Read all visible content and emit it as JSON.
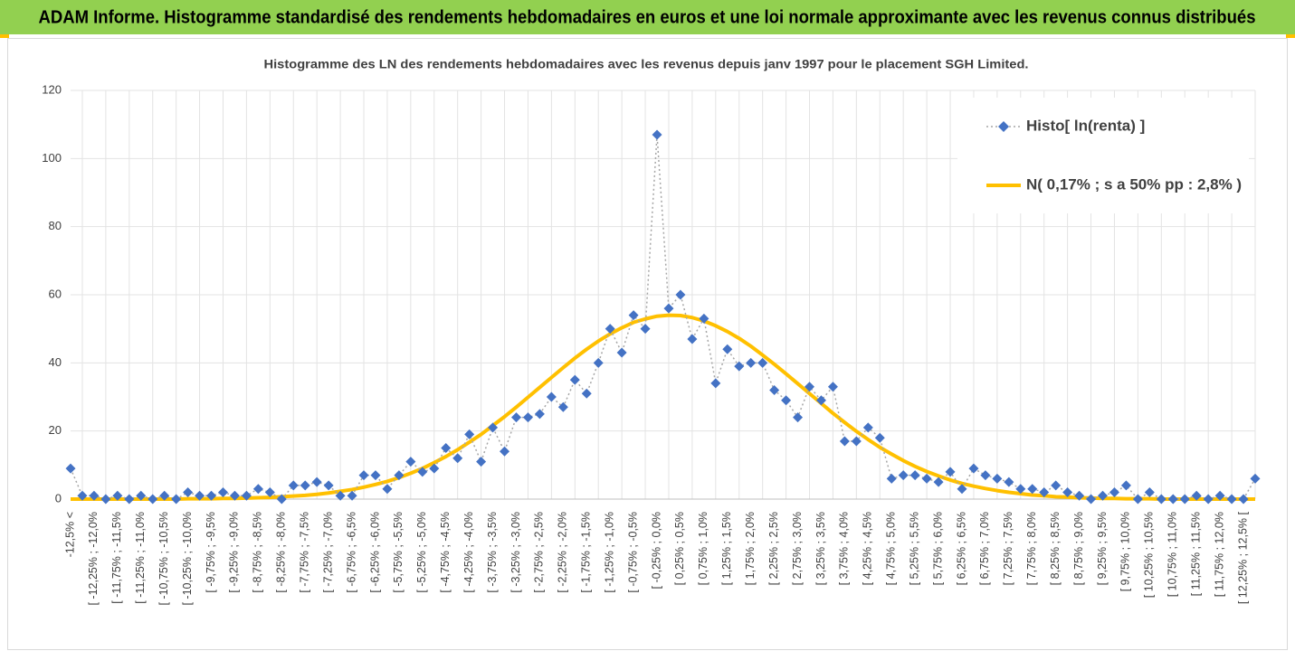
{
  "banner": "ADAM Informe. Histogramme standardisé des rendements hebdomadaires en euros et une loi normale approximante avec les revenus connus distribués",
  "chart_data": {
    "type": "line",
    "title": "Histogramme des LN des rendements hebdomadaires avec les revenus depuis janv 1997 pour le placement SGH Limited.",
    "categories": [
      "-12,5% <",
      null,
      "[ -12,25% ; -12,0%",
      null,
      "[ -11,75% ; -11,5%",
      null,
      "[ -11,25% ; -11,0%",
      null,
      "[ -10,75% ; -10,5%",
      null,
      "[ -10,25% ; -10,0%",
      null,
      "[ -9,75% ; -9,5%",
      null,
      "[ -9,25% ; -9,0%",
      null,
      "[ -8,75% ; -8,5%",
      null,
      "[ -8,25% ; -8,0%",
      null,
      "[ -7,75% ; -7,5%",
      null,
      "[ -7,25% ; -7,0%",
      null,
      "[ -6,75% ; -6,5%",
      null,
      "[ -6,25% ; -6,0%",
      null,
      "[ -5,75% ; -5,5%",
      null,
      "[ -5,25% ; -5,0%",
      null,
      "[ -4,75% ; -4,5%",
      null,
      "[ -4,25% ; -4,0%",
      null,
      "[ -3,75% ; -3,5%",
      null,
      "[ -3,25% ; -3,0%",
      null,
      "[ -2,75% ; -2,5%",
      null,
      "[ -2,25% ; -2,0%",
      null,
      "[ -1,75% ; -1,5%",
      null,
      "[ -1,25% ; -1,0%",
      null,
      "[ -0,75% ; -0,5%",
      null,
      "[ -0,25% ; 0,0%",
      null,
      "[ 0,25% ; 0,5%",
      null,
      "[ 0,75% ; 1,0%",
      null,
      "[ 1,25% ; 1,5%",
      null,
      "[ 1,75% ; 2,0%",
      null,
      "[ 2,25% ; 2,5%",
      null,
      "[ 2,75% ; 3,0%",
      null,
      "[ 3,25% ; 3,5%",
      null,
      "[ 3,75% ; 4,0%",
      null,
      "[ 4,25% ; 4,5%",
      null,
      "[ 4,75% ; 5,0%",
      null,
      "[ 5,25% ; 5,5%",
      null,
      "[ 5,75% ; 6,0%",
      null,
      "[ 6,25% ; 6,5%",
      null,
      "[ 6,75% ; 7,0%",
      null,
      "[ 7,25% ; 7,5%",
      null,
      "[ 7,75% ; 8,0%",
      null,
      "[ 8,25% ; 8,5%",
      null,
      "[ 8,75% ; 9,0%",
      null,
      "[ 9,25% ; 9,5%",
      null,
      "[ 9,75% ; 10,0%",
      null,
      "[ 10,25% ; 10,5%",
      null,
      "[ 10,75% ; 11,0%",
      null,
      "[ 11,25% ; 11,5%",
      null,
      "[ 11,75% ; 12,0%",
      null,
      "[ 12,25% ; 12,5% [",
      null
    ],
    "series": [
      {
        "name": "Histo[ ln(renta) ]",
        "color": "#4472c4",
        "line_color": "#a6a6a6",
        "line_style": "dotted",
        "marker": "diamond",
        "values": [
          9,
          1,
          1,
          0,
          1,
          0,
          1,
          0,
          1,
          0,
          2,
          1,
          1,
          2,
          1,
          1,
          3,
          2,
          0,
          4,
          4,
          5,
          4,
          1,
          1,
          7,
          7,
          3,
          7,
          11,
          8,
          9,
          15,
          12,
          19,
          11,
          21,
          14,
          24,
          24,
          25,
          30,
          27,
          35,
          31,
          40,
          50,
          43,
          54,
          50,
          107,
          56,
          60,
          47,
          53,
          34,
          44,
          39,
          40,
          40,
          32,
          29,
          24,
          33,
          29,
          33,
          17,
          17,
          21,
          18,
          6,
          7,
          7,
          6,
          5,
          8,
          3,
          9,
          7,
          6,
          5,
          3,
          3,
          2,
          4,
          2,
          1,
          0,
          1,
          2,
          4,
          0,
          2,
          0,
          0,
          0,
          1,
          0,
          1,
          0,
          0,
          6
        ]
      },
      {
        "name": "N( 0,17% ; s a 50% pp : 2,8% )",
        "color": "#ffc000",
        "line_color": "#ffc000",
        "line_style": "solid",
        "marker": "none",
        "values": [
          0,
          0,
          0,
          0,
          0,
          0,
          0,
          0,
          0,
          0,
          0.1,
          0.1,
          0.1,
          0.2,
          0.2,
          0.3,
          0.4,
          0.5,
          0.7,
          0.9,
          1.1,
          1.4,
          1.8,
          2.3,
          2.8,
          3.5,
          4.3,
          5.2,
          6.3,
          7.6,
          9.0,
          10.7,
          12.5,
          14.5,
          16.7,
          19.0,
          21.6,
          24.2,
          27.0,
          29.9,
          32.8,
          35.7,
          38.6,
          41.4,
          44.0,
          46.4,
          48.5,
          50.3,
          51.9,
          52.9,
          53.7,
          54.0,
          53.9,
          53.3,
          52.3,
          50.9,
          49.2,
          47.2,
          44.9,
          42.3,
          39.6,
          36.8,
          33.9,
          31.0,
          28.1,
          25.2,
          22.5,
          19.9,
          17.5,
          15.2,
          13.2,
          11.3,
          9.6,
          8.1,
          6.8,
          5.6,
          4.6,
          3.8,
          3.1,
          2.5,
          2.0,
          1.6,
          1.2,
          1.0,
          0.7,
          0.6,
          0.4,
          0.3,
          0.2,
          0.2,
          0.1,
          0.1,
          0.1,
          0,
          0,
          0,
          0,
          0,
          0,
          0,
          0,
          0
        ]
      }
    ],
    "ylim": [
      0,
      120
    ],
    "yticks": [
      0,
      20,
      40,
      60,
      80,
      100,
      120
    ],
    "grid": true,
    "legend": "top-right"
  }
}
